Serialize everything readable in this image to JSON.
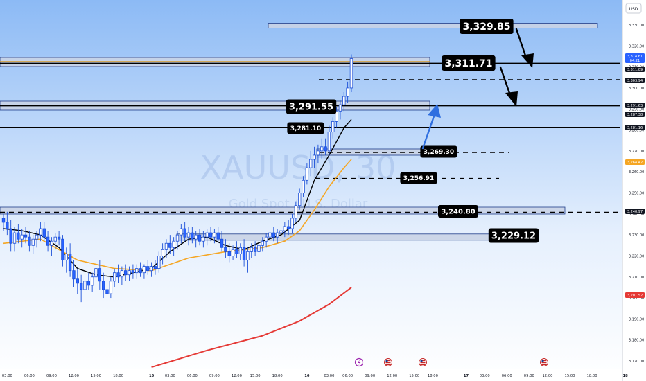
{
  "chart_data": {
    "type": "candlestick",
    "title": "",
    "watermark": {
      "symbol": "XAUUSD",
      "timeframe": "30",
      "subtitle": "Gold Spot / U.S. Dollar"
    },
    "currency_label": "USD",
    "ylim": [
      3165,
      3338
    ],
    "y_ticks": [
      3330,
      3320,
      3310,
      3300,
      3290,
      3280,
      3270,
      3260,
      3250,
      3240,
      3230,
      3220,
      3210,
      3200,
      3190,
      3180,
      3170
    ],
    "y_tick_labels": [
      "3,330.00",
      "3,320.00",
      "3,310.00",
      "3,300.00",
      "3,290.00",
      "3,280.00",
      "3,270.00",
      "3,260.00",
      "3,250.00",
      "3,240.00",
      "3,230.00",
      "3,220.00",
      "3,210.00",
      "3,200.00",
      "3,190.00",
      "3,180.00",
      "3,170.00"
    ],
    "x_labels": [
      {
        "bar": 1,
        "label": "03:00"
      },
      {
        "bar": 7,
        "label": "06:00"
      },
      {
        "bar": 13,
        "label": "09:00"
      },
      {
        "bar": 19,
        "label": "12:00"
      },
      {
        "bar": 25,
        "label": "15:00"
      },
      {
        "bar": 31,
        "label": "18:00"
      },
      {
        "bar": 40,
        "label": "15"
      },
      {
        "bar": 45,
        "label": "03:00"
      },
      {
        "bar": 51,
        "label": "06:00"
      },
      {
        "bar": 57,
        "label": "09:00"
      },
      {
        "bar": 63,
        "label": "12:00"
      },
      {
        "bar": 68,
        "label": "15:00"
      },
      {
        "bar": 74,
        "label": "18:00"
      },
      {
        "bar": 82,
        "label": "16"
      },
      {
        "bar": 88,
        "label": "03:00"
      },
      {
        "bar": 93,
        "label": "06:00"
      },
      {
        "bar": 99,
        "label": "09:00"
      },
      {
        "bar": 105,
        "label": "12:00"
      },
      {
        "bar": 111,
        "label": "15:00"
      },
      {
        "bar": 116,
        "label": "18:00"
      },
      {
        "bar": 125,
        "label": "17"
      },
      {
        "bar": 130,
        "label": "03:00"
      },
      {
        "bar": 136,
        "label": "06:00"
      },
      {
        "bar": 142,
        "label": "09:00"
      },
      {
        "bar": 147,
        "label": "12:00"
      },
      {
        "bar": 153,
        "label": "15:00"
      },
      {
        "bar": 159,
        "label": "18:00"
      },
      {
        "bar": 168,
        "label": "18"
      }
    ],
    "candles": [
      [
        3238,
        3240,
        3232,
        3236
      ],
      [
        3236,
        3241,
        3230,
        3233
      ],
      [
        3233,
        3237,
        3222,
        3226
      ],
      [
        3226,
        3234,
        3222,
        3231
      ],
      [
        3231,
        3235,
        3226,
        3228
      ],
      [
        3228,
        3233,
        3224,
        3230
      ],
      [
        3230,
        3234,
        3226,
        3229
      ],
      [
        3229,
        3232,
        3222,
        3225
      ],
      [
        3225,
        3230,
        3221,
        3228
      ],
      [
        3228,
        3232,
        3224,
        3230
      ],
      [
        3230,
        3236,
        3227,
        3233
      ],
      [
        3233,
        3236,
        3227,
        3229
      ],
      [
        3229,
        3232,
        3222,
        3225
      ],
      [
        3225,
        3229,
        3220,
        3227
      ],
      [
        3227,
        3231,
        3223,
        3229
      ],
      [
        3229,
        3232,
        3225,
        3228
      ],
      [
        3228,
        3230,
        3215,
        3218
      ],
      [
        3218,
        3224,
        3212,
        3221
      ],
      [
        3221,
        3226,
        3210,
        3213
      ],
      [
        3213,
        3218,
        3205,
        3209
      ],
      [
        3209,
        3214,
        3202,
        3207
      ],
      [
        3207,
        3211,
        3198,
        3204
      ],
      [
        3204,
        3210,
        3200,
        3208
      ],
      [
        3208,
        3212,
        3204,
        3206
      ],
      [
        3206,
        3212,
        3203,
        3210
      ],
      [
        3210,
        3216,
        3206,
        3214
      ],
      [
        3214,
        3218,
        3204,
        3208
      ],
      [
        3208,
        3212,
        3200,
        3204
      ],
      [
        3204,
        3208,
        3197,
        3202
      ],
      [
        3202,
        3210,
        3200,
        3208
      ],
      [
        3208,
        3214,
        3205,
        3212
      ],
      [
        3212,
        3216,
        3207,
        3210
      ],
      [
        3210,
        3215,
        3206,
        3213
      ],
      [
        3213,
        3216,
        3208,
        3211
      ],
      [
        3211,
        3215,
        3208,
        3213
      ],
      [
        3213,
        3216,
        3209,
        3212
      ],
      [
        3212,
        3216,
        3209,
        3214
      ],
      [
        3214,
        3217,
        3210,
        3212
      ],
      [
        3212,
        3216,
        3209,
        3215
      ],
      [
        3215,
        3218,
        3211,
        3213
      ],
      [
        3213,
        3217,
        3210,
        3215
      ],
      [
        3215,
        3218,
        3211,
        3214
      ],
      [
        3214,
        3222,
        3212,
        3220
      ],
      [
        3220,
        3226,
        3216,
        3223
      ],
      [
        3223,
        3228,
        3219,
        3226
      ],
      [
        3226,
        3230,
        3221,
        3224
      ],
      [
        3224,
        3229,
        3220,
        3227
      ],
      [
        3227,
        3232,
        3223,
        3230
      ],
      [
        3230,
        3235,
        3226,
        3233
      ],
      [
        3233,
        3236,
        3227,
        3229
      ],
      [
        3229,
        3234,
        3225,
        3231
      ],
      [
        3231,
        3234,
        3226,
        3228
      ],
      [
        3228,
        3232,
        3224,
        3230
      ],
      [
        3230,
        3233,
        3225,
        3227
      ],
      [
        3227,
        3232,
        3224,
        3229
      ],
      [
        3229,
        3233,
        3225,
        3231
      ],
      [
        3231,
        3234,
        3227,
        3229
      ],
      [
        3229,
        3233,
        3226,
        3231
      ],
      [
        3231,
        3234,
        3226,
        3228
      ],
      [
        3228,
        3232,
        3222,
        3224
      ],
      [
        3224,
        3228,
        3219,
        3222
      ],
      [
        3222,
        3226,
        3217,
        3220
      ],
      [
        3220,
        3225,
        3218,
        3223
      ],
      [
        3223,
        3227,
        3219,
        3221
      ],
      [
        3221,
        3226,
        3218,
        3224
      ],
      [
        3224,
        3228,
        3215,
        3218
      ],
      [
        3218,
        3224,
        3212,
        3222
      ],
      [
        3222,
        3226,
        3219,
        3224
      ],
      [
        3224,
        3227,
        3220,
        3222
      ],
      [
        3222,
        3226,
        3219,
        3225
      ],
      [
        3225,
        3229,
        3222,
        3227
      ],
      [
        3227,
        3231,
        3224,
        3229
      ],
      [
        3229,
        3233,
        3226,
        3231
      ],
      [
        3231,
        3234,
        3227,
        3229
      ],
      [
        3229,
        3233,
        3226,
        3231
      ],
      [
        3231,
        3234,
        3228,
        3232
      ],
      [
        3232,
        3236,
        3229,
        3234
      ],
      [
        3234,
        3237,
        3230,
        3233
      ],
      [
        3233,
        3240,
        3231,
        3238
      ],
      [
        3238,
        3246,
        3236,
        3244
      ],
      [
        3244,
        3252,
        3242,
        3250
      ],
      [
        3250,
        3258,
        3248,
        3256
      ],
      [
        3256,
        3264,
        3254,
        3262
      ],
      [
        3262,
        3270,
        3258,
        3266
      ],
      [
        3266,
        3272,
        3262,
        3268
      ],
      [
        3268,
        3273,
        3264,
        3270
      ],
      [
        3270,
        3276,
        3266,
        3272
      ],
      [
        3272,
        3276,
        3268,
        3270
      ],
      [
        3270,
        3282,
        3268,
        3279
      ],
      [
        3279,
        3286,
        3276,
        3284
      ],
      [
        3284,
        3291,
        3281,
        3289
      ],
      [
        3289,
        3294,
        3285,
        3292
      ],
      [
        3292,
        3298,
        3289,
        3296
      ],
      [
        3296,
        3303,
        3293,
        3300
      ],
      [
        3300,
        3316,
        3298,
        3314
      ]
    ],
    "ema_black": [
      [
        0,
        3233
      ],
      [
        5,
        3232
      ],
      [
        10,
        3230
      ],
      [
        15,
        3224
      ],
      [
        20,
        3214
      ],
      [
        25,
        3211
      ],
      [
        30,
        3210
      ],
      [
        35,
        3212
      ],
      [
        40,
        3214
      ],
      [
        45,
        3222
      ],
      [
        50,
        3228
      ],
      [
        55,
        3229
      ],
      [
        60,
        3225
      ],
      [
        65,
        3223
      ],
      [
        70,
        3227
      ],
      [
        75,
        3230
      ],
      [
        80,
        3237
      ],
      [
        84,
        3256
      ],
      [
        88,
        3268
      ],
      [
        92,
        3281
      ],
      [
        94,
        3285
      ]
    ],
    "ema_orange": [
      [
        0,
        3226
      ],
      [
        10,
        3228
      ],
      [
        20,
        3218
      ],
      [
        30,
        3214
      ],
      [
        40,
        3213
      ],
      [
        50,
        3219
      ],
      [
        60,
        3222
      ],
      [
        70,
        3224
      ],
      [
        76,
        3227
      ],
      [
        80,
        3232
      ],
      [
        84,
        3242
      ],
      [
        88,
        3253
      ],
      [
        92,
        3262
      ],
      [
        94,
        3266
      ]
    ],
    "ma_red": [
      [
        40,
        3167
      ],
      [
        55,
        3175
      ],
      [
        70,
        3182
      ],
      [
        80,
        3189
      ],
      [
        88,
        3197
      ],
      [
        94,
        3205
      ]
    ],
    "levels": [
      {
        "price": 3329.85,
        "label": "3,329.85",
        "style": "zone"
      },
      {
        "price": 3311.71,
        "label": "3,311.71",
        "style": "solid"
      },
      {
        "price": 3303.94,
        "label": "",
        "style": "dashed"
      },
      {
        "price": 3291.55,
        "label": "3,291.55",
        "style": "solid"
      },
      {
        "price": 3281.1,
        "label": "3,281.10",
        "style": "solid"
      },
      {
        "price": 3269.3,
        "label": "3,269.30",
        "style": "dashed"
      },
      {
        "price": 3256.91,
        "label": "3,256.91",
        "style": "dashed"
      },
      {
        "price": 3240.8,
        "label": "3,240.80",
        "style": "dashed"
      },
      {
        "price": 3229.12,
        "label": "3,229.12",
        "style": "zone"
      }
    ],
    "price_tags": [
      {
        "price": 3314.61,
        "label": "3,314.61",
        "sub": "04:21",
        "color": "#2962ff"
      },
      {
        "price": 3311.09,
        "label": "3,311.09",
        "color": "#131722"
      },
      {
        "price": 3303.94,
        "label": "3,303.94",
        "color": "#131722"
      },
      {
        "price": 3291.63,
        "label": "3,291.63",
        "color": "#131722"
      },
      {
        "price": 3287.38,
        "label": "3,287.38",
        "color": "#131722"
      },
      {
        "price": 3281.16,
        "label": "3,281.16",
        "color": "#131722"
      },
      {
        "price": 3264.42,
        "label": "3,264.42",
        "color": "#f5a623"
      },
      {
        "price": 3240.97,
        "label": "3,240.97",
        "color": "#131722"
      },
      {
        "price": 3201.52,
        "label": "3,201.52",
        "color": "#e53935"
      }
    ],
    "colors": {
      "bg_top": "#8cbaf5",
      "bg_bottom": "#ffffff",
      "candle": "#2962ff",
      "ema_black": "#000000",
      "ema_orange": "#f5a623",
      "ma_red": "#e53935",
      "zone_fill": "#c9d3e6",
      "arrow_blue": "#2f6fe0"
    }
  }
}
